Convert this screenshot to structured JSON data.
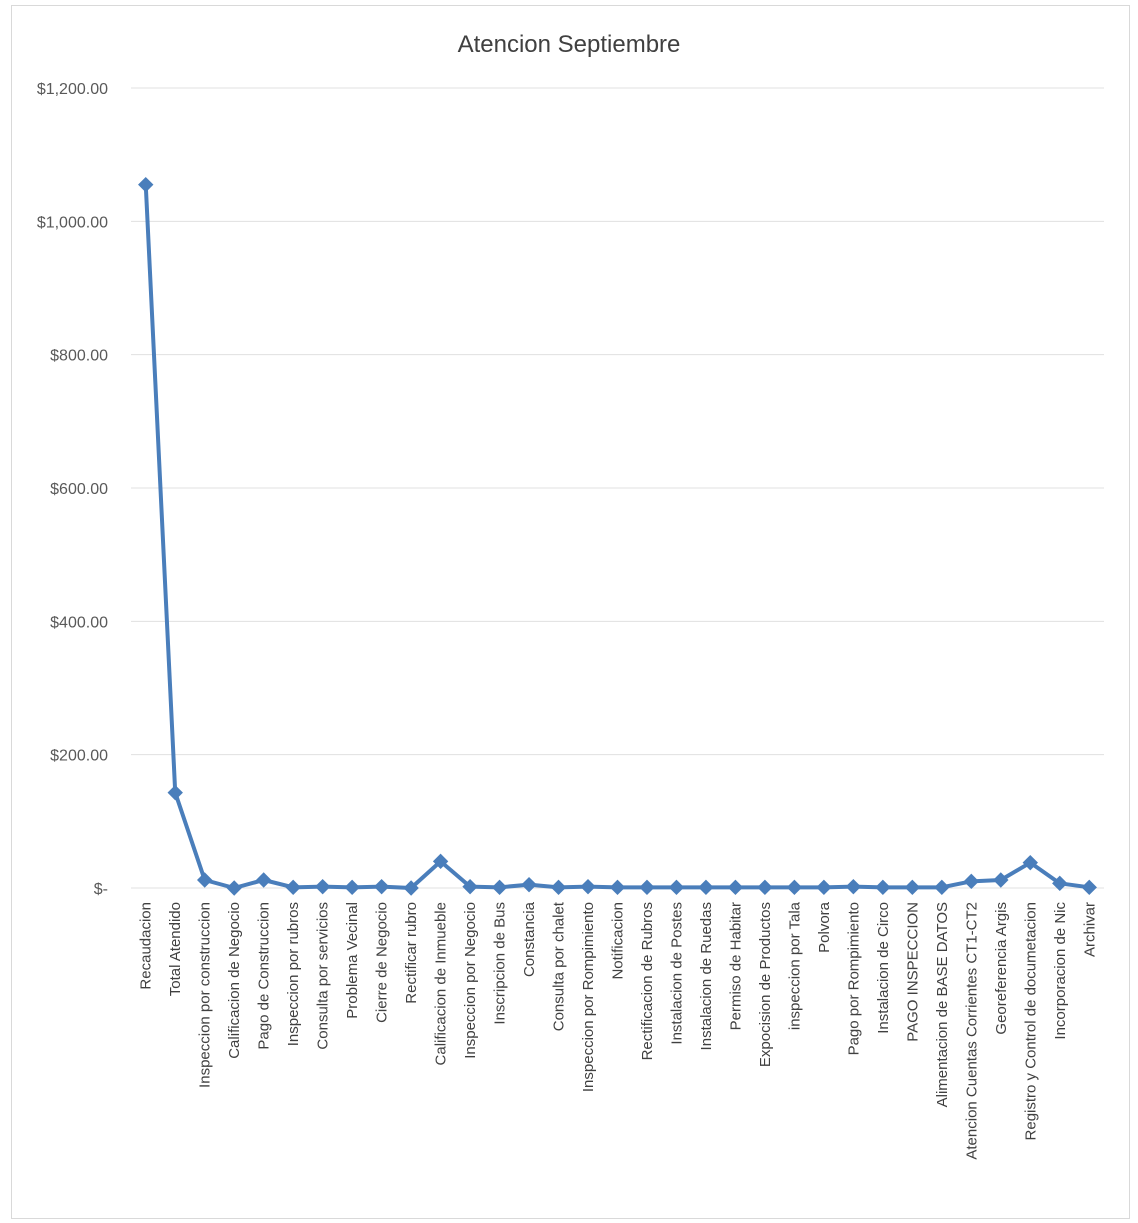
{
  "chart_data": {
    "type": "line",
    "title": "Atencion Septiembre",
    "xlabel": "",
    "ylabel": "",
    "ylim": [
      0,
      1200
    ],
    "yticks": [
      0,
      200,
      400,
      600,
      800,
      1000,
      1200
    ],
    "ytick_labels": [
      "$-",
      "$200.00",
      "$400.00",
      "$600.00",
      "$800.00",
      "$1,000.00",
      "$1,200.00"
    ],
    "grid": true,
    "legend": "none",
    "color": "#4a7ebb",
    "categories": [
      "Recaudacion",
      "Total Atendido",
      "Inspeccion por construccion",
      "Calificacion de Negocio",
      "Pago de Construccion",
      "Inspeccion por rubros",
      "Consulta por servicios",
      "Problema Vecinal",
      "Cierre de Negocio",
      "Rectificar  rubro",
      "Calificacion de Inmueble",
      "Inspeccion por Negocio",
      "Inscripcion de Bus",
      "Constancia",
      "Consulta por chalet",
      "Inspeccion por Rompimiento",
      "Notificacion",
      "Rectificacion de Rubros",
      "Instalacion de Postes",
      "Instalacion de Ruedas",
      "Permiso de Habitar",
      "Expocision de Productos",
      "inspeccion por Tala",
      "Polvora",
      "Pago por Rompimiento",
      "Instalacion de Circo",
      "PAGO INSPECCION",
      "Alimentacion de BASE DATOS",
      "Atencion Cuentas Corrientes CT1-CT2",
      "Georeferencia Argis",
      "Registro y Control de documetacion",
      "Incorporacion de Nic",
      "Archivar"
    ],
    "series": [
      {
        "values": [
          1055,
          143,
          12,
          0,
          12,
          1,
          2,
          1,
          2,
          0,
          40,
          2,
          1,
          5,
          1,
          2,
          1,
          1,
          1,
          1,
          1,
          1,
          1,
          1,
          2,
          1,
          1,
          1,
          10,
          12,
          38,
          7,
          1
        ]
      }
    ]
  }
}
